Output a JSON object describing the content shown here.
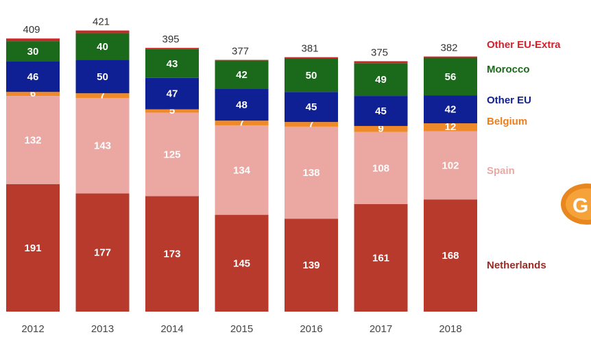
{
  "chart_data": {
    "type": "bar",
    "stacked": true,
    "categories": [
      "2012",
      "2013",
      "2014",
      "2015",
      "2016",
      "2017",
      "2018"
    ],
    "totals": [
      409,
      421,
      395,
      377,
      381,
      375,
      382
    ],
    "series": [
      {
        "name": "Netherlands",
        "color": "#b83a2d",
        "values": [
          191,
          177,
          173,
          145,
          139,
          161,
          168
        ]
      },
      {
        "name": "Spain",
        "color": "#eba8a3",
        "values": [
          132,
          143,
          125,
          134,
          138,
          108,
          102
        ]
      },
      {
        "name": "Belgium",
        "color": "#ef8a2a",
        "values": [
          6,
          7,
          5,
          7,
          7,
          9,
          12
        ]
      },
      {
        "name": "Other EU",
        "color": "#0f1f94",
        "values": [
          46,
          50,
          47,
          48,
          45,
          45,
          42
        ]
      },
      {
        "name": "Morocco",
        "color": "#1b6a1b",
        "values": [
          30,
          40,
          43,
          42,
          50,
          49,
          56
        ]
      },
      {
        "name": "Other EU-Extra",
        "color": "#c82828",
        "values": [
          4,
          4,
          2,
          1,
          2,
          3,
          2
        ]
      }
    ],
    "legend_colors": {
      "Other EU-Extra": "#d4202a",
      "Morocco": "#1b6a1b",
      "Other EU": "#0f1f94",
      "Belgium": "#ef7d1a",
      "Spain": "#eba8a3",
      "Netherlands": "#9a2a22"
    },
    "legend_placement": "right",
    "grid": false
  },
  "logo": {
    "text": "G",
    "icon": "brand-logo-icon"
  }
}
